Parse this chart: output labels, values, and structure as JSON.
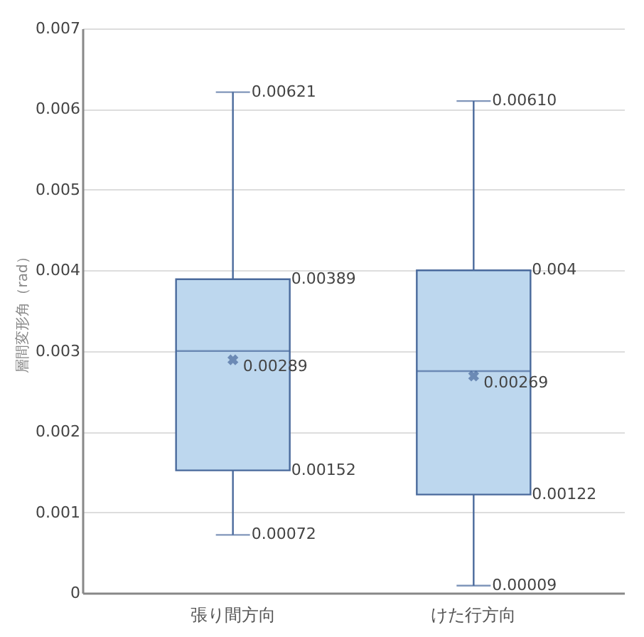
{
  "chart_data": {
    "type": "box",
    "ylabel": "層間変形角（rad）",
    "categories": [
      "張り間方向",
      "けた行方向"
    ],
    "boxes": [
      {
        "low": 0.00072,
        "q1": 0.00152,
        "median": 0.003,
        "q3": 0.00389,
        "high": 0.00621,
        "mean": 0.00289
      },
      {
        "low": 9e-05,
        "q1": 0.00122,
        "median": 0.00275,
        "q3": 0.004,
        "high": 0.0061,
        "mean": 0.00269
      }
    ],
    "color": "#bdd7ee",
    "ylim": [
      0,
      0.007
    ],
    "yticks": [
      0,
      0.001,
      0.002,
      0.003,
      0.004,
      0.005,
      0.006,
      0.007
    ],
    "grid": "y",
    "marker": "cross",
    "annotations": [
      {
        "text": "0.00621",
        "x": "張り間方向",
        "y": 0.00621
      },
      "0.00389",
      "0.00289",
      "0.00152",
      {
        "text": "0.00072",
        "x": "張り間方向",
        "y": 0.00072
      },
      {
        "text": "0.00610",
        "x": "けた行方向",
        "y": 0.0061
      },
      "0.004",
      "0.00269",
      "0.00122",
      {
        "text": "0.00009",
        "x": "けた行方向",
        "y": 9e-05
      }
    ]
  }
}
